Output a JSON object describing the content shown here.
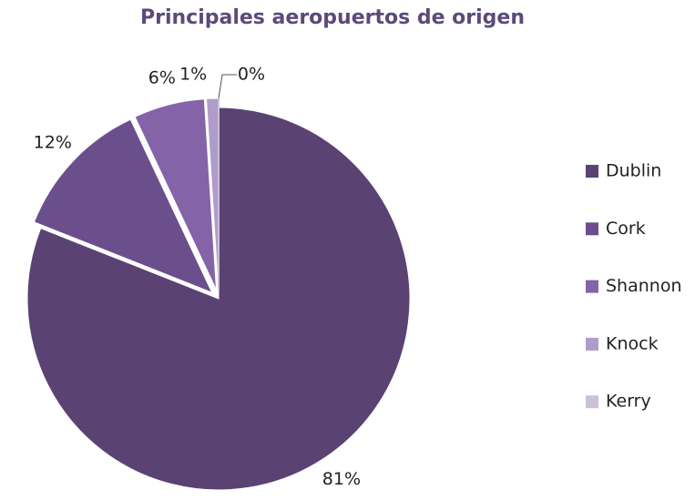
{
  "chart_data": {
    "type": "pie",
    "title": "Principales aeropuertos de origen",
    "categories": [
      "Dublin",
      "Cork",
      "Shannon",
      "Knock",
      "Kerry"
    ],
    "values": [
      81,
      12,
      6,
      1,
      0
    ],
    "value_labels": [
      "81%",
      "12%",
      "6%",
      "1%",
      "0%"
    ],
    "colors": [
      "#5a4272",
      "#6a4f8c",
      "#8463a8",
      "#b09cc8",
      "#cbc0d8"
    ],
    "legend": "right"
  }
}
